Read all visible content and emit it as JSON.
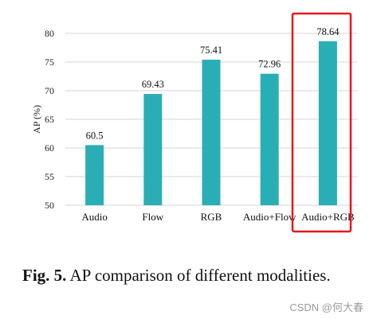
{
  "chart_data": {
    "type": "bar",
    "categories": [
      "Audio",
      "Flow",
      "RGB",
      "Audio+Flow",
      "Audio+RGB"
    ],
    "values": [
      60.5,
      69.43,
      75.41,
      72.96,
      78.64
    ],
    "value_labels": [
      "60.5",
      "69.43",
      "75.41",
      "72.96",
      "78.64"
    ],
    "ylabel": "AP (%)",
    "ylim": [
      50,
      80
    ],
    "yticks": [
      "50",
      "55",
      "60",
      "65",
      "70",
      "75",
      "80"
    ],
    "grid": true,
    "bar_color": "#2AAEB5",
    "highlight": {
      "category": "Audio+RGB",
      "color": "#E8161B"
    }
  },
  "caption": {
    "label": "Fig. 5.",
    "text": "AP comparison of different modalities."
  },
  "watermark": "CSDN @何大春"
}
